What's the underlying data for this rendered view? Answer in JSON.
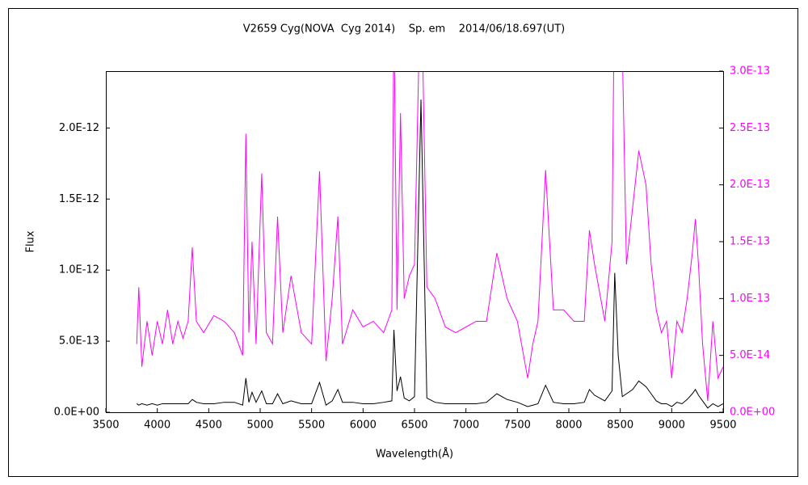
{
  "chart_data": {
    "type": "line",
    "title": "V2659 Cyg(NOVA  Cyg 2014)    Sp. em    2014/06/18.697(UT)",
    "xlabel": "Wavelength(Å)",
    "ylabel": "Flux",
    "x": [
      3800,
      3820,
      3850,
      3900,
      3950,
      4000,
      4050,
      4100,
      4150,
      4200,
      4250,
      4300,
      4340,
      4380,
      4450,
      4550,
      4650,
      4750,
      4830,
      4861,
      4890,
      4921,
      4960,
      5015,
      5060,
      5120,
      5169,
      5220,
      5300,
      5400,
      5500,
      5577,
      5640,
      5700,
      5755,
      5800,
      5900,
      6000,
      6100,
      6200,
      6280,
      6300,
      6330,
      6364,
      6400,
      6450,
      6500,
      6563,
      6620,
      6700,
      6800,
      6900,
      7000,
      7100,
      7200,
      7300,
      7400,
      7500,
      7600,
      7650,
      7700,
      7774,
      7850,
      7950,
      8050,
      8150,
      8200,
      8250,
      8350,
      8420,
      8446,
      8480,
      8520,
      8560,
      8620,
      8680,
      8750,
      8800,
      8850,
      8900,
      8950,
      9000,
      9050,
      9100,
      9150,
      9200,
      9230,
      9260,
      9300,
      9350,
      9400,
      9450,
      9500
    ],
    "series": [
      {
        "color": "#000000",
        "values": [
          6e-14,
          5e-14,
          6e-14,
          5e-14,
          6e-14,
          5e-14,
          6e-14,
          6e-14,
          6e-14,
          6e-14,
          6e-14,
          6e-14,
          9e-14,
          7e-14,
          6e-14,
          6e-14,
          7e-14,
          7e-14,
          5e-14,
          2.4e-13,
          7e-14,
          1.4e-13,
          7e-14,
          1.5e-13,
          6e-14,
          6e-14,
          1.3e-13,
          6e-14,
          8e-14,
          6e-14,
          6e-14,
          2.1e-13,
          5e-14,
          8e-14,
          1.6e-13,
          7e-14,
          7e-14,
          6e-14,
          6e-14,
          7e-14,
          8e-14,
          5.8e-13,
          1.5e-13,
          2.5e-13,
          1e-13,
          8e-14,
          1.1e-13,
          2.2e-12,
          1e-13,
          7e-14,
          6e-14,
          6e-14,
          6e-14,
          6e-14,
          7e-14,
          1.3e-13,
          9e-14,
          7e-14,
          4e-14,
          5e-14,
          6e-14,
          1.9e-13,
          7e-14,
          6e-14,
          6e-14,
          7e-14,
          1.6e-13,
          1.2e-13,
          8e-14,
          1.5e-13,
          9.8e-13,
          4e-13,
          1.1e-13,
          1.3e-13,
          1.6e-13,
          2.2e-13,
          1.8e-13,
          1.3e-13,
          8e-14,
          6e-14,
          6e-14,
          4e-14,
          7e-14,
          6e-14,
          9e-14,
          1.3e-13,
          1.6e-13,
          1.2e-13,
          8e-14,
          3e-14,
          6e-14,
          4e-14,
          6e-14
        ]
      },
      {
        "color": "#ff00ff",
        "axis": "y2",
        "values": [
          6e-14,
          1.1e-13,
          4e-14,
          8e-14,
          5e-14,
          8e-14,
          6e-14,
          9e-14,
          6e-14,
          8e-14,
          6.5e-14,
          8e-14,
          1.45e-13,
          8e-14,
          7e-14,
          8.5e-14,
          8e-14,
          7e-14,
          5e-14,
          2.45e-13,
          7e-14,
          1.5e-13,
          6e-14,
          2.1e-13,
          7e-14,
          6e-14,
          1.72e-13,
          7e-14,
          1.2e-13,
          7e-14,
          6e-14,
          2.12e-13,
          4.5e-14,
          1e-13,
          1.72e-13,
          6e-14,
          9e-14,
          7.5e-14,
          8e-14,
          7e-14,
          9e-14,
          3.5e-13,
          9e-14,
          2.63e-13,
          1e-13,
          1.2e-13,
          1.3e-13,
          4e-13,
          1.1e-13,
          1e-13,
          7.5e-14,
          7e-14,
          7.5e-14,
          8e-14,
          8e-14,
          1.4e-13,
          1e-13,
          8e-14,
          3e-14,
          6e-14,
          8e-14,
          2.13e-13,
          9e-14,
          9e-14,
          8e-14,
          8e-14,
          1.6e-13,
          1.3e-13,
          8e-14,
          1.5e-13,
          4e-13,
          3.5e-13,
          3.2e-13,
          1.3e-13,
          1.8e-13,
          2.3e-13,
          2e-13,
          1.3e-13,
          9e-14,
          7e-14,
          8e-14,
          3e-14,
          8e-14,
          7e-14,
          1e-13,
          1.4e-13,
          1.7e-13,
          1.3e-13,
          6e-14,
          1e-14,
          8e-14,
          3e-14,
          4e-14
        ]
      }
    ],
    "xlim": [
      3500,
      9500
    ],
    "xticks": [
      3500,
      4000,
      4500,
      5000,
      5500,
      6000,
      6500,
      7000,
      7500,
      8000,
      8500,
      9000,
      9500
    ],
    "ylim": [
      0,
      2.4e-12
    ],
    "yticks": [
      {
        "value": 0,
        "label": "0.0E+00"
      },
      {
        "value": 5e-13,
        "label": "5.0E-13"
      },
      {
        "value": 1e-12,
        "label": "1.0E-12"
      },
      {
        "value": 1.5e-12,
        "label": "1.5E-12"
      },
      {
        "value": 2e-12,
        "label": "2.0E-12"
      }
    ],
    "y2lim": [
      0,
      3e-13
    ],
    "y2ticks": [
      {
        "value": 0,
        "label": "0.0E+00"
      },
      {
        "value": 5e-14,
        "label": "5.0E-14"
      },
      {
        "value": 1e-13,
        "label": "1.0E-13"
      },
      {
        "value": 1.5e-13,
        "label": "1.5E-13"
      },
      {
        "value": 2e-13,
        "label": "2.0E-13"
      },
      {
        "value": 2.5e-13,
        "label": "2.5E-13"
      },
      {
        "value": 3e-13,
        "label": "3.0E-13"
      }
    ],
    "y2color": "#ff00ff",
    "grid": false
  }
}
